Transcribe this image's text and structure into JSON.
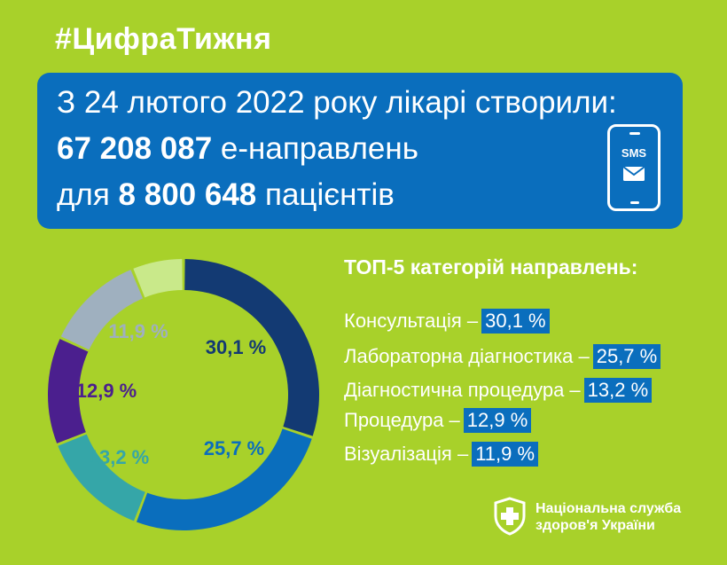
{
  "header": {
    "hashtag": "#ЦифраТижня"
  },
  "banner": {
    "line1": "З 24 лютого 2022 року лікарі створили:",
    "referrals_count": "67 208 087",
    "referrals_suffix": "е-направлень",
    "patients_prefix": "для",
    "patients_count": "8 800 648",
    "patients_suffix": "пацієнтів",
    "phone_label": "SMS",
    "phone_icon": "smartphone-sms-icon"
  },
  "top5": {
    "title": "ТОП-5 категорій направлень:",
    "items": [
      {
        "label": "Консультація –",
        "value": "30,1 %"
      },
      {
        "label": "Лабораторна діагностика –",
        "value": "25,7 %"
      },
      {
        "label": "Діагностична процедура –",
        "value": "13,2 %"
      },
      {
        "label": "Процедура –",
        "value": "12,9 %"
      },
      {
        "label": "Візуалізація –",
        "value": "11,9 %"
      }
    ]
  },
  "chart_data": {
    "type": "pie",
    "title": "",
    "categories": [
      "Консультація",
      "Лабораторна діагностика",
      "Діагностична процедура",
      "Процедура",
      "Візуалізація",
      ""
    ],
    "values": [
      30.1,
      25.7,
      13.2,
      12.9,
      11.9,
      6.2
    ],
    "labels": [
      "30,1 %",
      "25,7 %",
      "13,2 %",
      "12,9 %",
      "11,9 %",
      ""
    ],
    "colors": [
      "#133a73",
      "#0a6ebd",
      "#35a6a8",
      "#4b1f8e",
      "#9fb0bf",
      "#c9e98a"
    ],
    "label_colors": [
      "#133a73",
      "#0a6ebd",
      "#35a6a8",
      "#4b1f8e",
      "#9fb0bf",
      ""
    ],
    "legend": "none"
  },
  "footer": {
    "org_line1": "Національна служба",
    "org_line2": "здоров'я України",
    "logo_icon": "nszu-shield-cross-icon"
  },
  "colors": {
    "background": "#a8d12a",
    "accent_blue": "#0a6ebd",
    "text": "#ffffff"
  }
}
